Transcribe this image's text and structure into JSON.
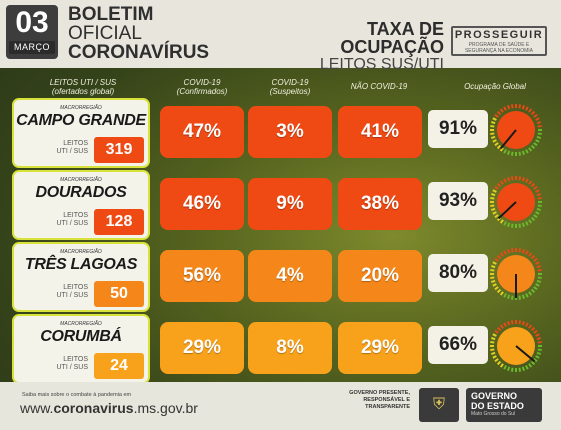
{
  "header": {
    "day": "03",
    "month": "MARÇO",
    "boletim": [
      "BOLETIM",
      "OFICIAL",
      "CORONAVÍRUS"
    ],
    "taxa_title": "TAXA DE OCUPAÇÃO",
    "taxa_sub": "LEITOS SUS/UTI",
    "logo_name": "PROSSEGUIR",
    "logo_sub": "PROGRAMA DE SAÚDE E SEGURANÇA NA ECONOMIA"
  },
  "columns": {
    "leitos": "LEITOS UTI / SUS",
    "leitos_sub": "(ofertados global)",
    "confirmados": "COVID-19",
    "confirmados_sub": "(Confirmados)",
    "suspeitos": "COVID-19",
    "suspeitos_sub": "(Suspeitos)",
    "nao_covid": "NÃO COVID-19",
    "ocupacao": "Ocupação Global"
  },
  "macro_label": "MACRORREGIÃO",
  "leitos_label": "LEITOS UTI / SUS",
  "rows": [
    {
      "name": "CAMPO GRANDE",
      "beds": "319",
      "confirmados": "47%",
      "suspeitos": "3%",
      "nao_covid": "41%",
      "ocupacao": "91%",
      "occ_value": 91,
      "color": "#f04a14",
      "bed_color": "#f04a14"
    },
    {
      "name": "DOURADOS",
      "beds": "128",
      "confirmados": "46%",
      "suspeitos": "9%",
      "nao_covid": "38%",
      "ocupacao": "93%",
      "occ_value": 93,
      "color": "#f04a14",
      "bed_color": "#f04a14"
    },
    {
      "name": "TRÊS LAGOAS",
      "beds": "50",
      "confirmados": "56%",
      "suspeitos": "4%",
      "nao_covid": "20%",
      "ocupacao": "80%",
      "occ_value": 80,
      "color": "#f5871a",
      "bed_color": "#f5871a"
    },
    {
      "name": "CORUMBÁ",
      "beds": "24",
      "confirmados": "29%",
      "suspeitos": "8%",
      "nao_covid": "29%",
      "ocupacao": "66%",
      "occ_value": 66,
      "color": "#f8a21c",
      "bed_color": "#f8a21c"
    }
  ],
  "footer": {
    "info": "Saiba mais sobre o combate à pandemia em",
    "url_prefix": "www.",
    "url_bold": "coronavirus",
    "url_suffix": ".ms.gov.br",
    "gov_slogan": "GOVERNO PRESENTE, RESPONSÁVEL E TRANSPARENTE",
    "gov1": "GOVERNO",
    "gov2": "DO ESTADO",
    "gov3": "Mato Grosso do Sul",
    "seal_icon": "coat-of-arms-icon"
  }
}
